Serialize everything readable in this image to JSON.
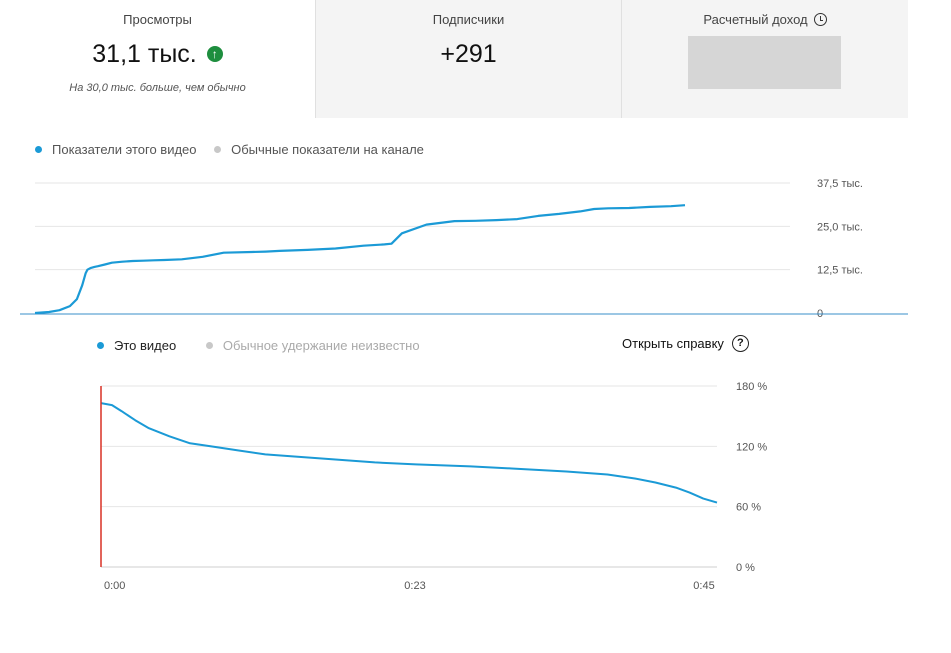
{
  "stats": {
    "views": {
      "label": "Просмотры",
      "value": "31,1 тыс.",
      "note": "На 30,0 тыс. больше, чем обычно"
    },
    "subscribers": {
      "label": "Подписчики",
      "value": "+291"
    },
    "revenue": {
      "label": "Расчетный доход"
    }
  },
  "views_legend": {
    "this_video": "Показатели этого видео",
    "typical": "Обычные показатели на канале"
  },
  "retention_legend": {
    "this_video": "Это видео",
    "typical": "Обычное удержание неизвестно"
  },
  "help_label": "Открыть справку",
  "icons": {
    "trend": "arrow-up-icon",
    "revenue_info": "clock-icon",
    "help": "help-icon"
  },
  "colors": {
    "series": "#1b9ad6",
    "up": "#1e8e3e",
    "playhead": "#d93025",
    "grid": "#e6e6e6"
  },
  "chart_data": [
    {
      "type": "line",
      "title": "",
      "y_ticks": [
        "37,5 тыс.",
        "25,0 тыс.",
        "12,5 тыс.",
        "0"
      ],
      "ylim": [
        0,
        37500
      ],
      "series": [
        {
          "name": "Показатели этого видео",
          "x": [
            0,
            4,
            7,
            10,
            12,
            13.5,
            14.5,
            15,
            16,
            17,
            18,
            20,
            22,
            25,
            28,
            31,
            34,
            37,
            42,
            48,
            54,
            62,
            66,
            70,
            78,
            86,
            94,
            100,
            102,
            105,
            112,
            120,
            126,
            132,
            138,
            144,
            150,
            156,
            160,
            164,
            170,
            176,
            182,
            186
          ],
          "y": [
            0,
            300,
            800,
            2000,
            4000,
            8000,
            11500,
            12500,
            13000,
            13300,
            13500,
            14000,
            14500,
            14800,
            15000,
            15100,
            15200,
            15300,
            15500,
            16200,
            17400,
            17600,
            17700,
            17900,
            18200,
            18600,
            19400,
            19800,
            20000,
            23000,
            25500,
            26500,
            26600,
            26800,
            27100,
            28000,
            28600,
            29300,
            30000,
            30200,
            30300,
            30600,
            30800,
            31100
          ]
        }
      ]
    },
    {
      "type": "line",
      "title": "",
      "x_ticks": [
        "0:00",
        "0:23",
        "0:45"
      ],
      "y_ticks": [
        "180 %",
        "120 %",
        "60 %",
        "0 %"
      ],
      "xlim": [
        0,
        45
      ],
      "ylim": [
        0,
        180
      ],
      "series": [
        {
          "name": "Это видео",
          "x": [
            0,
            0.8,
            1.5,
            2.5,
            3.5,
            5,
            6.5,
            8,
            10,
            12,
            14,
            17,
            20,
            23,
            27,
            30,
            34,
            37,
            39,
            40.5,
            42,
            43,
            44,
            45
          ],
          "y": [
            163,
            161,
            155,
            146,
            138,
            130,
            123,
            120,
            116,
            112,
            110,
            107,
            104,
            102,
            100,
            98,
            95,
            92,
            88,
            84,
            79,
            74,
            68,
            64
          ]
        }
      ]
    }
  ]
}
